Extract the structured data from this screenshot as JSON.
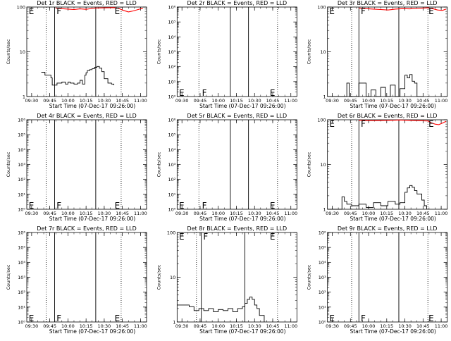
{
  "colors": {
    "events": "#000000",
    "lld": "#ff0000",
    "axis": "#000000",
    "background": "#ffffff"
  },
  "chart_data": [
    {
      "type": "line",
      "title": "Det 1r BLACK = Events, RED = LLD",
      "xlabel": "Start Time (07-Dec-17 09:26:00)",
      "ylabel": "Counts/sec",
      "xlim": [
        "09:26",
        "11:05"
      ],
      "x_ticks": [
        "09:30",
        "09:45",
        "10:00",
        "10:15",
        "10:30",
        "10:45",
        "11:00"
      ],
      "y_scale": "log",
      "ylim": [
        1,
        100
      ],
      "y_ticks": [
        "1",
        "10",
        "100"
      ],
      "vlines_solid": [
        "09:49",
        "10:23"
      ],
      "vlines_dotted": [
        "09:42",
        "10:44"
      ],
      "markers": [
        {
          "text": "E",
          "x": "09:27",
          "y": 100
        },
        {
          "text": "F",
          "x": "09:50",
          "y": 100
        },
        {
          "text": "E",
          "x": "10:38",
          "y": 100
        }
      ],
      "series": [
        {
          "name": "Events",
          "color": "#000000",
          "step": true,
          "x": [
            "09:38",
            "09:41",
            "09:43",
            "09:46",
            "09:47",
            "09:51",
            "09:55",
            "09:58",
            "10:00",
            "10:02",
            "10:05",
            "10:08",
            "10:10",
            "10:12",
            "10:14",
            "10:15",
            "10:16",
            "10:18",
            "10:20",
            "10:22",
            "10:24",
            "10:26",
            "10:28",
            "10:30",
            "10:33",
            "10:36",
            "10:38"
          ],
          "y": [
            3.5,
            3,
            3,
            2.6,
            1.8,
            2,
            2.1,
            1.9,
            2.1,
            2,
            1.9,
            2,
            2.3,
            1.9,
            3,
            3.4,
            3.8,
            4,
            4.2,
            4.5,
            4.7,
            4.3,
            3.6,
            2.5,
            2,
            1.9,
            1.8
          ]
        },
        {
          "name": "LLD",
          "color": "#ff0000",
          "step": false,
          "x": [
            "09:50",
            "09:55",
            "10:00",
            "10:05",
            "10:10",
            "10:15",
            "10:20",
            "10:22",
            "10:38",
            "10:42",
            "10:46",
            "10:50",
            "10:54",
            "10:58",
            "11:02"
          ],
          "y": [
            95,
            92,
            90,
            88,
            91,
            89,
            93,
            95,
            97,
            93,
            84,
            78,
            82,
            88,
            94
          ]
        }
      ]
    },
    {
      "type": "line",
      "title": "Det 2r BLACK = Events, RED = LLD",
      "xlabel": "Start Time (07-Dec-17 09:26:00)",
      "ylabel": "Counts/sec",
      "xlim": [
        "09:26",
        "11:05"
      ],
      "x_ticks": [
        "09:30",
        "09:45",
        "10:00",
        "10:15",
        "10:30",
        "10:45",
        "11:00"
      ],
      "y_scale": "log",
      "ylim": [
        1,
        1000000
      ],
      "y_ticks": [
        "10⁰",
        "10¹",
        "10²",
        "10³",
        "10⁴",
        "10⁵",
        "10⁶"
      ],
      "vlines_solid": [
        "10:10",
        "10:25"
      ],
      "vlines_dotted": [
        "09:44",
        "10:49"
      ],
      "markers": [
        {
          "text": "E",
          "x": "09:27",
          "y": 3
        },
        {
          "text": "F",
          "x": "09:46",
          "y": 3
        },
        {
          "text": "E",
          "x": "10:42",
          "y": 3
        }
      ],
      "series": []
    },
    {
      "type": "line",
      "title": "Det 3r BLACK = Events, RED = LLD",
      "xlabel": "Start Time (07-Dec-17 09:26:00)",
      "ylabel": "Counts/sec",
      "xlim": [
        "09:26",
        "11:05"
      ],
      "x_ticks": [
        "09:30",
        "09:45",
        "10:00",
        "10:15",
        "10:30",
        "10:45",
        "11:00"
      ],
      "y_scale": "log",
      "ylim": [
        1,
        100
      ],
      "y_ticks": [
        "1",
        "10",
        "100"
      ],
      "vlines_solid": [
        "09:52",
        "10:25"
      ],
      "vlines_dotted": [
        "09:46",
        "10:49"
      ],
      "markers": [
        {
          "text": "E",
          "x": "09:27",
          "y": 100
        },
        {
          "text": "F",
          "x": "09:53",
          "y": 100
        },
        {
          "text": "E",
          "x": "10:49",
          "y": 100
        }
      ],
      "series": [
        {
          "name": "Events",
          "color": "#000000",
          "step": true,
          "x": [
            "09:26",
            "09:40",
            "09:42",
            "09:44",
            "09:46",
            "09:52",
            "09:58",
            "10:02",
            "10:06",
            "10:10",
            "10:14",
            "10:18",
            "10:22",
            "10:26",
            "10:30",
            "10:32",
            "10:34",
            "10:36",
            "10:38",
            "10:40",
            "10:45"
          ],
          "y": [
            1,
            1,
            2,
            1,
            1,
            2,
            1,
            1.4,
            1,
            1.6,
            1,
            1.8,
            1,
            1.5,
            3,
            2.6,
            3.1,
            2.2,
            2,
            1,
            1
          ]
        },
        {
          "name": "LLD",
          "color": "#ff0000",
          "step": false,
          "x": [
            "09:52",
            "09:58",
            "10:04",
            "10:10",
            "10:16",
            "10:22",
            "10:28",
            "10:34",
            "10:40",
            "10:45",
            "10:49",
            "10:53",
            "10:57",
            "11:01",
            "11:04"
          ],
          "y": [
            95,
            92,
            90,
            88,
            86,
            90,
            92,
            91,
            93,
            95,
            96,
            92,
            86,
            84,
            90
          ]
        }
      ]
    },
    {
      "type": "line",
      "title": "Det 4r BLACK = Events, RED = LLD",
      "xlabel": "Start Time (07-Dec-17 09:26:00)",
      "ylabel": "Counts/sec",
      "xlim": [
        "09:26",
        "11:05"
      ],
      "x_ticks": [
        "09:30",
        "09:45",
        "10:00",
        "10:15",
        "10:30",
        "10:45",
        "11:00"
      ],
      "y_scale": "log",
      "ylim": [
        1,
        1000000
      ],
      "y_ticks": [
        "10⁰",
        "10¹",
        "10²",
        "10³",
        "10⁴",
        "10⁵",
        "10⁶"
      ],
      "vlines_solid": [
        "09:49",
        "10:23"
      ],
      "vlines_dotted": [
        "09:42",
        "10:44"
      ],
      "markers": [
        {
          "text": "E",
          "x": "09:27",
          "y": 3
        },
        {
          "text": "F",
          "x": "09:50",
          "y": 3
        },
        {
          "text": "E",
          "x": "10:38",
          "y": 3
        }
      ],
      "series": []
    },
    {
      "type": "line",
      "title": "Det 5r BLACK = Events, RED = LLD",
      "xlabel": "Start Time (07-Dec-17 09:26:00)",
      "ylabel": "Counts/sec",
      "xlim": [
        "09:26",
        "11:05"
      ],
      "x_ticks": [
        "09:30",
        "09:45",
        "10:00",
        "10:15",
        "10:30",
        "10:45",
        "11:00"
      ],
      "y_scale": "log",
      "ylim": [
        1,
        1000000
      ],
      "y_ticks": [
        "10⁰",
        "10¹",
        "10²",
        "10³",
        "10⁴",
        "10⁵",
        "10⁶"
      ],
      "vlines_solid": [
        "10:10",
        "10:25"
      ],
      "vlines_dotted": [
        "09:44",
        "10:49"
      ],
      "markers": [
        {
          "text": "E",
          "x": "09:27",
          "y": 3
        },
        {
          "text": "F",
          "x": "09:46",
          "y": 3
        },
        {
          "text": "E",
          "x": "10:42",
          "y": 3
        }
      ],
      "series": []
    },
    {
      "type": "line",
      "title": "Det 6r BLACK = Events, RED = LLD",
      "xlabel": "Start Time (07-Dec-17 09:26:00)",
      "ylabel": "Counts/sec",
      "xlim": [
        "09:26",
        "11:05"
      ],
      "x_ticks": [
        "09:30",
        "09:45",
        "10:00",
        "10:15",
        "10:30",
        "10:45",
        "11:00"
      ],
      "y_scale": "log",
      "ylim": [
        1,
        100
      ],
      "y_ticks": [
        "1",
        "10",
        "100"
      ],
      "vlines_solid": [
        "09:52",
        "10:25"
      ],
      "vlines_dotted": [
        "09:46",
        "10:49"
      ],
      "markers": [
        {
          "text": "E",
          "x": "09:27",
          "y": 100
        },
        {
          "text": "F",
          "x": "09:53",
          "y": 100
        },
        {
          "text": "E",
          "x": "10:49",
          "y": 100
        }
      ],
      "series": [
        {
          "name": "Events",
          "color": "#000000",
          "step": true,
          "x": [
            "09:26",
            "09:37",
            "09:38",
            "09:40",
            "09:42",
            "09:46",
            "09:52",
            "09:58",
            "10:04",
            "10:10",
            "10:16",
            "10:22",
            "10:26",
            "10:30",
            "10:32",
            "10:34",
            "10:36",
            "10:38",
            "10:40",
            "10:44",
            "10:46",
            "10:48"
          ],
          "y": [
            1,
            1,
            1.9,
            1.5,
            1.3,
            1.2,
            1.3,
            1.1,
            1.4,
            1.2,
            1.5,
            1.3,
            1.4,
            2.4,
            3,
            3.4,
            3.1,
            2.6,
            2.2,
            1.6,
            1.2,
            1
          ]
        },
        {
          "name": "LLD",
          "color": "#ff0000",
          "step": false,
          "x": [
            "09:52",
            "09:58",
            "10:04",
            "10:10",
            "10:16",
            "10:22",
            "10:25",
            "10:49",
            "10:52",
            "10:55",
            "10:58",
            "11:01",
            "11:04"
          ],
          "y": [
            98,
            96,
            95,
            96,
            97,
            98,
            99,
            94,
            85,
            80,
            78,
            84,
            92
          ]
        }
      ]
    },
    {
      "type": "line",
      "title": "Det 7r BLACK = Events, RED = LLD",
      "xlabel": "Start Time (07-Dec-17 09:26:00)",
      "ylabel": "Counts/sec",
      "xlim": [
        "09:26",
        "11:05"
      ],
      "x_ticks": [
        "09:30",
        "09:45",
        "10:00",
        "10:15",
        "10:30",
        "10:45",
        "11:00"
      ],
      "y_scale": "log",
      "ylim": [
        1,
        1000000
      ],
      "y_ticks": [
        "10⁰",
        "10¹",
        "10²",
        "10³",
        "10⁴",
        "10⁵",
        "10⁶"
      ],
      "vlines_solid": [
        "09:49",
        "10:23"
      ],
      "vlines_dotted": [
        "09:42",
        "10:44"
      ],
      "markers": [
        {
          "text": "E",
          "x": "09:27",
          "y": 3
        },
        {
          "text": "F",
          "x": "09:50",
          "y": 3
        },
        {
          "text": "E",
          "x": "10:38",
          "y": 3
        }
      ],
      "series": []
    },
    {
      "type": "line",
      "title": "Det 8r BLACK = Events, RED = LLD",
      "xlabel": "Start Time (07-Dec-17 09:26:00)",
      "ylabel": "Counts/sec",
      "xlim": [
        "09:26",
        "11:05"
      ],
      "x_ticks": [
        "09:30",
        "09:45",
        "10:00",
        "10:15",
        "10:30",
        "10:45",
        "11:00"
      ],
      "y_scale": "log",
      "ylim": [
        1,
        100
      ],
      "y_ticks": [
        "1",
        "10",
        "100"
      ],
      "vlines_solid": [
        "09:46",
        "10:22"
      ],
      "vlines_dotted": [
        "09:42",
        "10:49"
      ],
      "markers": [
        {
          "text": "E",
          "x": "09:27",
          "y": 100
        },
        {
          "text": "F",
          "x": "09:47",
          "y": 100
        },
        {
          "text": "E",
          "x": "10:42",
          "y": 100
        }
      ],
      "series": [
        {
          "name": "Events",
          "color": "#000000",
          "step": true,
          "x": [
            "09:26",
            "09:36",
            "09:40",
            "09:44",
            "09:48",
            "09:52",
            "09:56",
            "10:00",
            "10:04",
            "10:08",
            "10:12",
            "10:16",
            "10:20",
            "10:22",
            "10:24",
            "10:26",
            "10:28",
            "10:30",
            "10:32",
            "10:34",
            "10:38"
          ],
          "y": [
            2.4,
            2.2,
            1.8,
            2,
            1.8,
            2,
            1.7,
            1.9,
            1.8,
            2,
            1.7,
            2,
            2.2,
            2.6,
            3.2,
            3.6,
            3.2,
            2.4,
            2,
            1.4,
            1
          ]
        }
      ]
    },
    {
      "type": "line",
      "title": "Det 9r BLACK = Events, RED = LLD",
      "xlabel": "Start Time (07-Dec-17 09:26:00)",
      "ylabel": "Counts/sec",
      "xlim": [
        "09:26",
        "11:05"
      ],
      "x_ticks": [
        "09:30",
        "09:45",
        "10:00",
        "10:15",
        "10:30",
        "10:45",
        "11:00"
      ],
      "y_scale": "log",
      "ylim": [
        1,
        1000000
      ],
      "y_ticks": [
        "10⁰",
        "10¹",
        "10²",
        "10³",
        "10⁴",
        "10⁵",
        "10⁶"
      ],
      "vlines_solid": [
        "09:52",
        "10:25"
      ],
      "vlines_dotted": [
        "09:46",
        "10:49"
      ],
      "markers": [
        {
          "text": "E",
          "x": "09:27",
          "y": 3
        },
        {
          "text": "F",
          "x": "09:53",
          "y": 3
        },
        {
          "text": "E",
          "x": "10:49",
          "y": 3
        }
      ],
      "series": []
    }
  ]
}
